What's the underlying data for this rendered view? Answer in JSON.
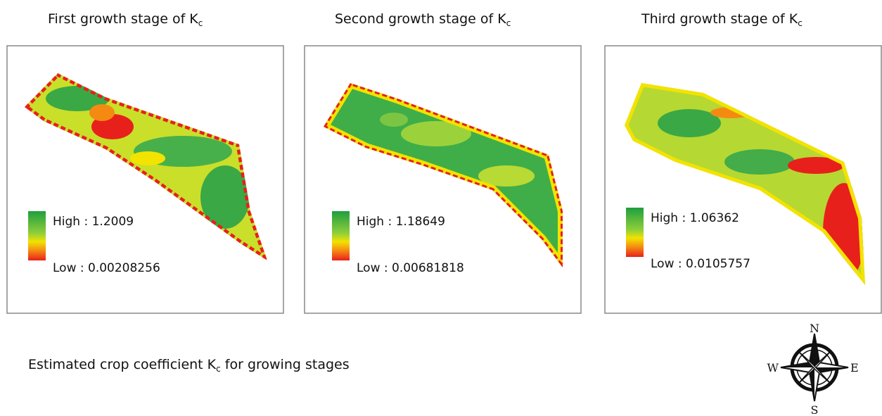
{
  "panels": [
    {
      "title": {
        "main": "First growth stage of K",
        "sub": "c"
      },
      "legend": {
        "high": "High : 1.2009",
        "low": "Low : 0.00208256"
      }
    },
    {
      "title": {
        "main": "Second growth stage of K",
        "sub": "c"
      },
      "legend": {
        "high": "High : 1.18649",
        "low": "Low : 0.00681818"
      }
    },
    {
      "title": {
        "main": "Third growth stage of K",
        "sub": "c"
      },
      "legend": {
        "high": "High : 1.06362",
        "low": "Low : 0.0105757"
      }
    }
  ],
  "caption": {
    "main": "Estimated crop coefficient K",
    "sub": "c",
    "rest": " for growing stages"
  },
  "compass": {
    "north": "N",
    "east": "E",
    "south": "S",
    "west": "W"
  }
}
